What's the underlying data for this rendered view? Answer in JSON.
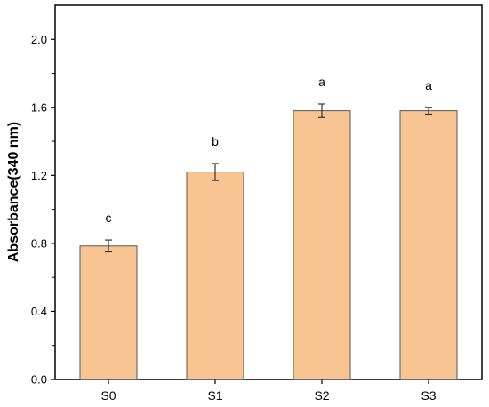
{
  "chart_data": {
    "type": "bar",
    "categories": [
      "S0",
      "S1",
      "S2",
      "S3"
    ],
    "values": [
      0.785,
      1.22,
      1.58,
      1.58
    ],
    "errors": [
      0.035,
      0.05,
      0.04,
      0.02
    ],
    "significance": [
      "c",
      "b",
      "a",
      "a"
    ],
    "title": "",
    "xlabel": "",
    "ylabel": "Absorbance(340 nm)",
    "ylim": [
      0,
      2.2
    ],
    "yticks": [
      "0.0",
      "0.4",
      "0.8",
      "1.2",
      "1.6",
      "2.0"
    ],
    "ytick_values": [
      0,
      0.4,
      0.8,
      1.2,
      1.6,
      2.0
    ],
    "grid": false,
    "bar_color": "#f8c592",
    "bar_edge_color": "#555555"
  }
}
